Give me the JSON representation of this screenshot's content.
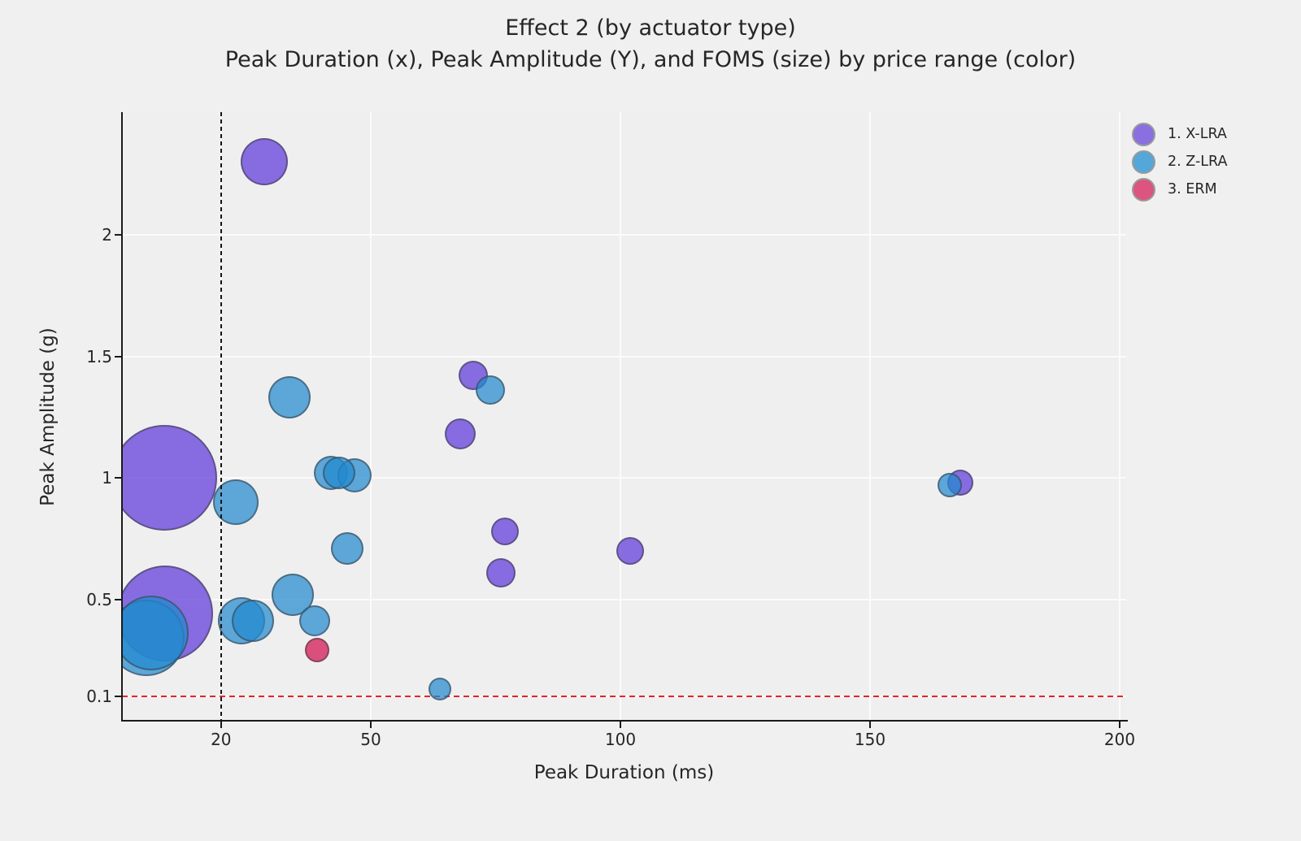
{
  "figure": {
    "title": "Effect 2 (by actuator type)",
    "subtitle": "Peak Duration (x), Peak Amplitude (Y), and FOMS (size) by price range (color)"
  },
  "axes": {
    "x_label": "Peak Duration (ms)",
    "y_label": "Peak Amplitude (g)",
    "x_tick_labels": [
      "20",
      "50",
      "100",
      "150",
      "200"
    ],
    "y_tick_labels": [
      "2",
      "1.5",
      "1",
      "0.5",
      "0.1"
    ]
  },
  "legend": {
    "items": [
      {
        "label": "1. X-LRA",
        "color": "#8a6fe0"
      },
      {
        "label": "2. Z-LRA",
        "color": "#55a7da"
      },
      {
        "label": "3. ERM",
        "color": "#dc5480"
      }
    ]
  },
  "chart_data": {
    "type": "scatter",
    "subtype": "bubble",
    "title": "Effect 2 (by actuator type)",
    "subtitle": "Peak Duration (x), Peak Amplitude (Y), and FOMS (size) by price range (color)",
    "xlabel": "Peak Duration (ms)",
    "ylabel": "Peak Amplitude (g)",
    "size_meaning": "FOMS (bubble radius in px)",
    "color_meaning": "price range / actuator type",
    "xlim": [
      0,
      205
    ],
    "ylim": [
      0,
      2.51
    ],
    "x_ticks": [
      20,
      50,
      100,
      150,
      200
    ],
    "y_ticks": [
      2,
      1.5,
      1,
      0.5,
      0.1
    ],
    "grid": true,
    "legend_position": "upper right",
    "reference_lines": [
      {
        "axis": "x",
        "value": 20,
        "style": "dashed",
        "color": "#151515"
      },
      {
        "axis": "y",
        "value": 0.1,
        "style": "dashed",
        "color": "#e62525"
      }
    ],
    "series": [
      {
        "name": "1. X-LRA",
        "fill": "rgba(94,56,217,0.72)",
        "points": [
          {
            "x": 28.7,
            "y": 2.3,
            "r": 29
          },
          {
            "x": 8.6,
            "y": 1.0,
            "r": 65
          },
          {
            "x": 8.8,
            "y": 0.44,
            "r": 59
          },
          {
            "x": 70.5,
            "y": 1.42,
            "r": 18
          },
          {
            "x": 67.9,
            "y": 1.18,
            "r": 19
          },
          {
            "x": 76.9,
            "y": 0.78,
            "r": 17
          },
          {
            "x": 76.1,
            "y": 0.61,
            "r": 18
          },
          {
            "x": 102,
            "y": 0.7,
            "r": 17
          },
          {
            "x": 168,
            "y": 0.98,
            "r": 16
          }
        ]
      },
      {
        "name": "2. Z-LRA",
        "fill": "rgba(35,137,206,0.72)",
        "points": [
          {
            "x": 5.0,
            "y": 0.34,
            "r": 47
          },
          {
            "x": 6.0,
            "y": 0.36,
            "r": 46
          },
          {
            "x": 33.7,
            "y": 1.33,
            "r": 26
          },
          {
            "x": 73.9,
            "y": 1.36,
            "r": 18
          },
          {
            "x": 23.0,
            "y": 0.9,
            "r": 28
          },
          {
            "x": 42.0,
            "y": 1.02,
            "r": 21
          },
          {
            "x": 46.7,
            "y": 1.01,
            "r": 21
          },
          {
            "x": 43.6,
            "y": 1.02,
            "r": 20
          },
          {
            "x": 45.3,
            "y": 0.71,
            "r": 20
          },
          {
            "x": 34.4,
            "y": 0.52,
            "r": 26
          },
          {
            "x": 24.1,
            "y": 0.41,
            "r": 29
          },
          {
            "x": 26.4,
            "y": 0.41,
            "r": 26
          },
          {
            "x": 38.8,
            "y": 0.41,
            "r": 19
          },
          {
            "x": 63.8,
            "y": 0.13,
            "r": 14
          },
          {
            "x": 166,
            "y": 0.97,
            "r": 15
          }
        ]
      },
      {
        "name": "3. ERM",
        "fill": "rgba(211,17,80,0.72)",
        "points": [
          {
            "x": 39.2,
            "y": 0.29,
            "r": 15
          }
        ]
      }
    ]
  }
}
